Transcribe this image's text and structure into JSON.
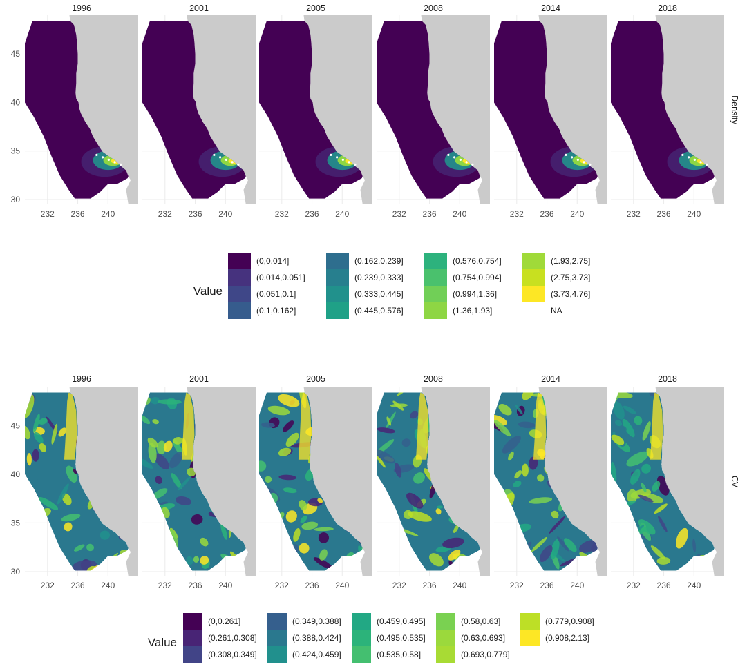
{
  "chart_data": [
    {
      "type": "heatmap",
      "facet_label": "Density",
      "panels": [
        "1996",
        "2001",
        "2005",
        "2008",
        "2014",
        "2018"
      ],
      "x_ticks": [
        "232",
        "236",
        "240"
      ],
      "y_ticks": [
        "45",
        "40",
        "35",
        "30"
      ],
      "xlim": [
        229,
        244
      ],
      "ylim": [
        29.5,
        49
      ],
      "legend_title": "Value",
      "legend_bins": [
        "(0,0.014]",
        "(0.014,0.051]",
        "(0.051,0.1]",
        "(0.1,0.162]",
        "(0.162,0.239]",
        "(0.239,0.333]",
        "(0.333,0.445]",
        "(0.445,0.576]",
        "(0.576,0.754]",
        "(0.754,0.994]",
        "(0.994,1.36]",
        "(1.36,1.93]",
        "(1.93,2.75]",
        "(2.75,3.73]",
        "(3.73,4.76]",
        "NA"
      ],
      "legend_colors": [
        "#440154",
        "#46327e",
        "#3f4788",
        "#365c8d",
        "#2e6e8e",
        "#277f8e",
        "#21918c",
        "#1fa187",
        "#2db27d",
        "#4ac16d",
        "#71cf57",
        "#8ed644",
        "#a0da39",
        "#c8e020",
        "#fde725",
        ""
      ]
    },
    {
      "type": "heatmap",
      "facet_label": "CV",
      "panels": [
        "1996",
        "2001",
        "2005",
        "2008",
        "2014",
        "2018"
      ],
      "x_ticks": [
        "232",
        "236",
        "240"
      ],
      "y_ticks": [
        "45",
        "40",
        "35",
        "30"
      ],
      "xlim": [
        229,
        244
      ],
      "ylim": [
        29.5,
        49
      ],
      "legend_title": "Value",
      "legend_bins": [
        "(0,0.261]",
        "(0.261,0.308]",
        "(0.308,0.349]",
        "(0.349,0.388]",
        "(0.388,0.424]",
        "(0.424,0.459]",
        "(0.459,0.495]",
        "(0.495,0.535]",
        "(0.535,0.58]",
        "(0.58,0.63]",
        "(0.63,0.693]",
        "(0.693,0.779]",
        "(0.779,0.908]",
        "(0.908,2.13]"
      ],
      "legend_colors": [
        "#440154",
        "#482475",
        "#414487",
        "#355f8d",
        "#2a788e",
        "#21908d",
        "#22a884",
        "#2cb37a",
        "#44bf70",
        "#7ad151",
        "#9bd93c",
        "#a8db34",
        "#bddf26",
        "#fde725"
      ]
    }
  ]
}
